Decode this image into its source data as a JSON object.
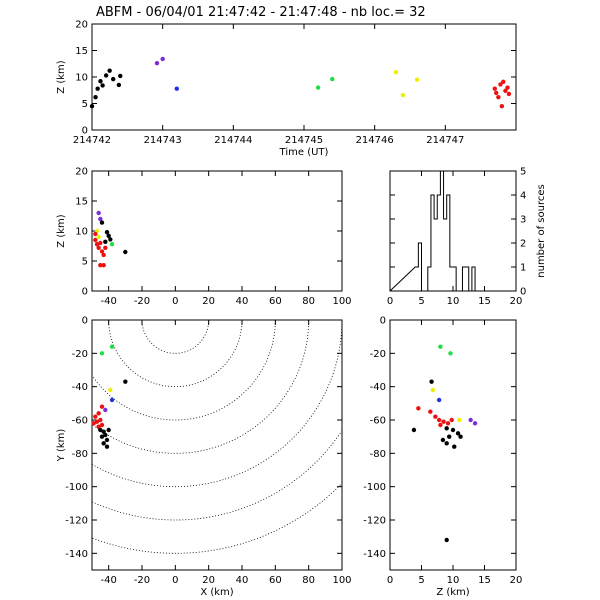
{
  "title": "ABFM - 06/04/01 21:47:42 - 21:47:48 - nb loc.=       32",
  "colors": {
    "black": "#000000",
    "purple": "#7a2fd6",
    "blue": "#2233dd",
    "green": "#22dd44",
    "yellow": "#eeee00",
    "red": "#ee1111"
  },
  "chart_data": [
    {
      "id": "time-z",
      "type": "scatter",
      "xlabel": "Time (UT)",
      "ylabel": "Z (km)",
      "xlim": [
        214742,
        214748
      ],
      "ylim": [
        0,
        20
      ],
      "xticks": [
        "214742",
        "214743",
        "214744",
        "214745",
        "214746",
        "214747"
      ],
      "yticks": [
        "0",
        "5",
        "10",
        "15",
        "20"
      ],
      "points": [
        {
          "x": 214742.0,
          "y": 4.5,
          "c": "black"
        },
        {
          "x": 214742.05,
          "y": 6.2,
          "c": "black"
        },
        {
          "x": 214742.08,
          "y": 7.8,
          "c": "black"
        },
        {
          "x": 214742.12,
          "y": 9.2,
          "c": "black"
        },
        {
          "x": 214742.15,
          "y": 8.4,
          "c": "black"
        },
        {
          "x": 214742.2,
          "y": 10.3,
          "c": "black"
        },
        {
          "x": 214742.25,
          "y": 11.2,
          "c": "black"
        },
        {
          "x": 214742.3,
          "y": 9.6,
          "c": "black"
        },
        {
          "x": 214742.38,
          "y": 8.5,
          "c": "black"
        },
        {
          "x": 214742.4,
          "y": 10.2,
          "c": "black"
        },
        {
          "x": 214742.92,
          "y": 12.6,
          "c": "purple"
        },
        {
          "x": 214743.0,
          "y": 13.4,
          "c": "purple"
        },
        {
          "x": 214743.2,
          "y": 7.8,
          "c": "blue"
        },
        {
          "x": 214745.2,
          "y": 8.0,
          "c": "green"
        },
        {
          "x": 214745.4,
          "y": 9.6,
          "c": "green"
        },
        {
          "x": 214746.3,
          "y": 10.9,
          "c": "yellow"
        },
        {
          "x": 214746.4,
          "y": 6.6,
          "c": "yellow"
        },
        {
          "x": 214746.6,
          "y": 9.5,
          "c": "yellow"
        },
        {
          "x": 214747.7,
          "y": 7.8,
          "c": "red"
        },
        {
          "x": 214747.72,
          "y": 7.0,
          "c": "red"
        },
        {
          "x": 214747.75,
          "y": 6.2,
          "c": "red"
        },
        {
          "x": 214747.78,
          "y": 8.6,
          "c": "red"
        },
        {
          "x": 214747.8,
          "y": 4.5,
          "c": "red"
        },
        {
          "x": 214747.82,
          "y": 9.1,
          "c": "red"
        },
        {
          "x": 214747.85,
          "y": 7.4,
          "c": "red"
        },
        {
          "x": 214747.88,
          "y": 8.0,
          "c": "red"
        },
        {
          "x": 214747.9,
          "y": 6.8,
          "c": "red"
        }
      ]
    },
    {
      "id": "x-z",
      "type": "scatter",
      "xlabel": "",
      "ylabel": "Z (km)",
      "xlim": [
        -50,
        100
      ],
      "ylim": [
        0,
        20
      ],
      "xticks": [
        "-40",
        "-20",
        "0",
        "20",
        "40",
        "60",
        "80",
        "100"
      ],
      "yticks": [
        "0",
        "5",
        "10",
        "15",
        "20"
      ],
      "points": [
        {
          "x": -46,
          "y": 13.0,
          "c": "purple"
        },
        {
          "x": -45,
          "y": 12.0,
          "c": "purple"
        },
        {
          "x": -44,
          "y": 11.4,
          "c": "black"
        },
        {
          "x": -47,
          "y": 10.0,
          "c": "yellow"
        },
        {
          "x": -46,
          "y": 9.0,
          "c": "yellow"
        },
        {
          "x": -41,
          "y": 9.8,
          "c": "black"
        },
        {
          "x": -40,
          "y": 9.2,
          "c": "black"
        },
        {
          "x": -39,
          "y": 8.6,
          "c": "black"
        },
        {
          "x": -38,
          "y": 7.8,
          "c": "green"
        },
        {
          "x": -42,
          "y": 8.2,
          "c": "black"
        },
        {
          "x": -30,
          "y": 6.5,
          "c": "black"
        },
        {
          "x": -48,
          "y": 8.5,
          "c": "red"
        },
        {
          "x": -47,
          "y": 7.8,
          "c": "red"
        },
        {
          "x": -46,
          "y": 7.2,
          "c": "red"
        },
        {
          "x": -45,
          "y": 8.0,
          "c": "red"
        },
        {
          "x": -44,
          "y": 6.6,
          "c": "red"
        },
        {
          "x": -43,
          "y": 6.0,
          "c": "red"
        },
        {
          "x": -42,
          "y": 7.2,
          "c": "red"
        },
        {
          "x": -45,
          "y": 4.3,
          "c": "red"
        },
        {
          "x": -43,
          "y": 4.3,
          "c": "red"
        },
        {
          "x": -48,
          "y": 9.5,
          "c": "red"
        }
      ]
    },
    {
      "id": "histogram",
      "type": "bar",
      "xlabel": "",
      "ylabel": "number of sources",
      "xlim": [
        0,
        20
      ],
      "ylim": [
        0,
        5
      ],
      "xticks": [
        "0",
        "5",
        "10",
        "15",
        "20"
      ],
      "yticks": [
        "0",
        "1",
        "2",
        "3",
        "4",
        "5"
      ],
      "bin_width": 0.5,
      "bins": [
        {
          "x0": 4.0,
          "count": 1
        },
        {
          "x0": 4.5,
          "count": 2
        },
        {
          "x0": 5.0,
          "count": 0
        },
        {
          "x0": 5.5,
          "count": 0
        },
        {
          "x0": 6.0,
          "count": 1
        },
        {
          "x0": 6.5,
          "count": 4
        },
        {
          "x0": 7.0,
          "count": 3
        },
        {
          "x0": 7.5,
          "count": 4
        },
        {
          "x0": 8.0,
          "count": 5
        },
        {
          "x0": 8.5,
          "count": 3
        },
        {
          "x0": 9.0,
          "count": 4
        },
        {
          "x0": 9.5,
          "count": 1
        },
        {
          "x0": 10.0,
          "count": 1
        },
        {
          "x0": 10.5,
          "count": 0
        },
        {
          "x0": 11.0,
          "count": 0
        },
        {
          "x0": 11.5,
          "count": 1
        },
        {
          "x0": 12.0,
          "count": 1
        },
        {
          "x0": 12.5,
          "count": 0
        },
        {
          "x0": 13.0,
          "count": 1
        }
      ]
    },
    {
      "id": "x-y",
      "type": "scatter",
      "xlabel": "X (km)",
      "ylabel": "Y (km)",
      "xlim": [
        -50,
        100
      ],
      "ylim": [
        -150,
        0
      ],
      "xticks": [
        "-40",
        "-20",
        "0",
        "20",
        "40",
        "60",
        "80",
        "100"
      ],
      "yticks": [
        "-140",
        "-120",
        "-100",
        "-80",
        "-60",
        "-40",
        "-20",
        "0"
      ],
      "range_rings_km": [
        20,
        40,
        60,
        80,
        100,
        120,
        140
      ],
      "points": [
        {
          "x": -38,
          "y": -16,
          "c": "green"
        },
        {
          "x": -44,
          "y": -20,
          "c": "green"
        },
        {
          "x": -30,
          "y": -37,
          "c": "black"
        },
        {
          "x": -39,
          "y": -42,
          "c": "yellow"
        },
        {
          "x": -38,
          "y": -48,
          "c": "blue"
        },
        {
          "x": -42,
          "y": -54,
          "c": "purple"
        },
        {
          "x": -44,
          "y": -52,
          "c": "red"
        },
        {
          "x": -46,
          "y": -56,
          "c": "red"
        },
        {
          "x": -48,
          "y": -58,
          "c": "red"
        },
        {
          "x": -47,
          "y": -61,
          "c": "red"
        },
        {
          "x": -49,
          "y": -62,
          "c": "red"
        },
        {
          "x": -45,
          "y": -60,
          "c": "red"
        },
        {
          "x": -44,
          "y": -63,
          "c": "red"
        },
        {
          "x": -46,
          "y": -64,
          "c": "red"
        },
        {
          "x": -45,
          "y": -66,
          "c": "black"
        },
        {
          "x": -43,
          "y": -67,
          "c": "black"
        },
        {
          "x": -42,
          "y": -69,
          "c": "black"
        },
        {
          "x": -44,
          "y": -70,
          "c": "black"
        },
        {
          "x": -41,
          "y": -72,
          "c": "black"
        },
        {
          "x": -43,
          "y": -74,
          "c": "black"
        },
        {
          "x": -41,
          "y": -76,
          "c": "black"
        },
        {
          "x": -40,
          "y": -66,
          "c": "black"
        }
      ]
    },
    {
      "id": "z-y",
      "type": "scatter",
      "xlabel": "Z (km)",
      "ylabel": "",
      "xlim": [
        0,
        20
      ],
      "ylim": [
        -150,
        0
      ],
      "xticks": [
        "0",
        "5",
        "10",
        "15",
        "20"
      ],
      "yticks": [
        "-140",
        "-120",
        "-100",
        "-80",
        "-60",
        "-40",
        "-20",
        "0"
      ],
      "points": [
        {
          "x": 8.0,
          "y": -16,
          "c": "green"
        },
        {
          "x": 9.6,
          "y": -20,
          "c": "green"
        },
        {
          "x": 6.6,
          "y": -37,
          "c": "black"
        },
        {
          "x": 6.8,
          "y": -42,
          "c": "yellow"
        },
        {
          "x": 7.8,
          "y": -48,
          "c": "blue"
        },
        {
          "x": 12.8,
          "y": -60,
          "c": "purple"
        },
        {
          "x": 13.5,
          "y": -62,
          "c": "purple"
        },
        {
          "x": 11.0,
          "y": -60,
          "c": "yellow"
        },
        {
          "x": 4.5,
          "y": -53,
          "c": "red"
        },
        {
          "x": 6.4,
          "y": -55,
          "c": "red"
        },
        {
          "x": 7.2,
          "y": -58,
          "c": "red"
        },
        {
          "x": 7.8,
          "y": -60,
          "c": "red"
        },
        {
          "x": 8.5,
          "y": -61,
          "c": "red"
        },
        {
          "x": 9.2,
          "y": -62,
          "c": "red"
        },
        {
          "x": 8.0,
          "y": -63,
          "c": "red"
        },
        {
          "x": 9.8,
          "y": -60,
          "c": "red"
        },
        {
          "x": 3.8,
          "y": -66,
          "c": "black"
        },
        {
          "x": 9.0,
          "y": -65,
          "c": "black"
        },
        {
          "x": 10.0,
          "y": -66,
          "c": "black"
        },
        {
          "x": 10.8,
          "y": -68,
          "c": "black"
        },
        {
          "x": 9.4,
          "y": -70,
          "c": "black"
        },
        {
          "x": 8.4,
          "y": -72,
          "c": "black"
        },
        {
          "x": 9.0,
          "y": -74,
          "c": "black"
        },
        {
          "x": 10.2,
          "y": -76,
          "c": "black"
        },
        {
          "x": 11.2,
          "y": -70,
          "c": "black"
        },
        {
          "x": 9.0,
          "y": -132,
          "c": "black"
        }
      ]
    }
  ]
}
